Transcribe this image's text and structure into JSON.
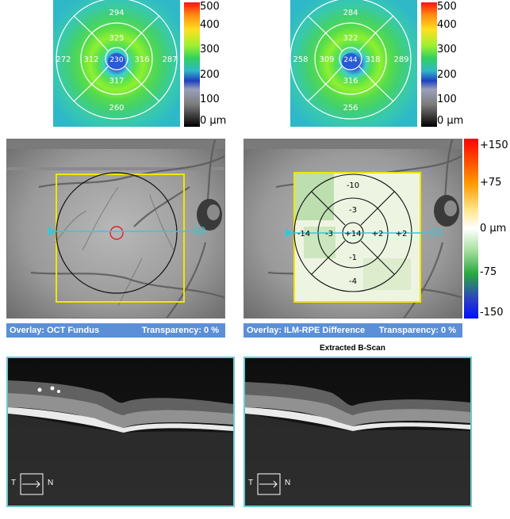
{
  "thickness_maps": [
    {
      "center": "230",
      "inner": {
        "top": "325",
        "left": "312",
        "right": "316",
        "bottom": "317"
      },
      "outer": {
        "top": "294",
        "left": "272",
        "right": "287",
        "bottom": "260"
      }
    },
    {
      "center": "244",
      "inner": {
        "top": "322",
        "left": "309",
        "right": "318",
        "bottom": "316"
      },
      "outer": {
        "top": "284",
        "left": "258",
        "right": "289",
        "bottom": "256"
      }
    }
  ],
  "thickness_scale": [
    "500",
    "400",
    "300",
    "200",
    "100",
    "0 µm"
  ],
  "fundus_left": {
    "scan_position": "60",
    "overlay_label": "Overlay: OCT Fundus",
    "transparency_label": "Transparency: 0 %"
  },
  "fundus_right": {
    "scan_position": "60",
    "overlay_label": "Overlay: ILM-RPE Difference",
    "transparency_label": "Transparency: 0 %",
    "center": "+14",
    "inner": {
      "top": "-3",
      "left": "-3",
      "right": "+2",
      "bottom": "-1"
    },
    "outer": {
      "top": "-10",
      "left": "-14",
      "right": "+2",
      "bottom": "-4"
    }
  },
  "difference_scale": [
    "+150",
    "+75",
    "0 µm",
    "-75",
    "-150"
  ],
  "bscans": {
    "right_title": "Extracted B-Scan",
    "orientation_left": "T",
    "orientation_right": "N"
  },
  "colors": {
    "overlay_bar": "#5b8fd8",
    "bscan_border": "#6cc9cf",
    "scan_line": "#39c6d6",
    "grid_box": "#f2e600"
  }
}
